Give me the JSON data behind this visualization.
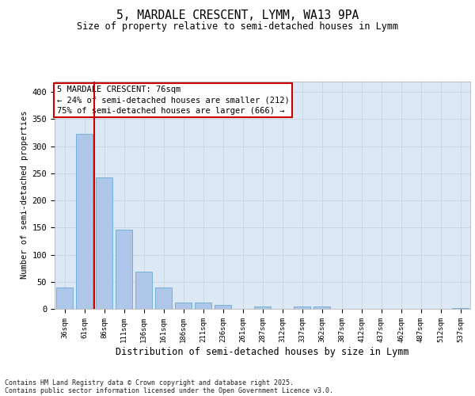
{
  "title1": "5, MARDALE CRESCENT, LYMM, WA13 9PA",
  "title2": "Size of property relative to semi-detached houses in Lymm",
  "xlabel": "Distribution of semi-detached houses by size in Lymm",
  "ylabel": "Number of semi-detached properties",
  "categories": [
    "36sqm",
    "61sqm",
    "86sqm",
    "111sqm",
    "136sqm",
    "161sqm",
    "186sqm",
    "211sqm",
    "236sqm",
    "261sqm",
    "287sqm",
    "312sqm",
    "337sqm",
    "362sqm",
    "387sqm",
    "412sqm",
    "437sqm",
    "462sqm",
    "487sqm",
    "512sqm",
    "537sqm"
  ],
  "values": [
    40,
    323,
    242,
    146,
    68,
    40,
    12,
    11,
    7,
    0,
    4,
    0,
    5,
    5,
    0,
    0,
    0,
    0,
    0,
    0,
    1
  ],
  "bar_color": "#aec6e8",
  "bar_edge_color": "#6aaad4",
  "red_line_color": "#cc0000",
  "ylim": [
    0,
    420
  ],
  "yticks": [
    0,
    50,
    100,
    150,
    200,
    250,
    300,
    350,
    400
  ],
  "grid_color": "#c8d8ea",
  "bg_color": "#dce8f4",
  "ann_line1": "5 MARDALE CRESCENT: 76sqm",
  "ann_line2": "← 24% of semi-detached houses are smaller (212)",
  "ann_line3": "75% of semi-detached houses are larger (666) →",
  "footer1": "Contains HM Land Registry data © Crown copyright and database right 2025.",
  "footer2": "Contains public sector information licensed under the Open Government Licence v3.0."
}
